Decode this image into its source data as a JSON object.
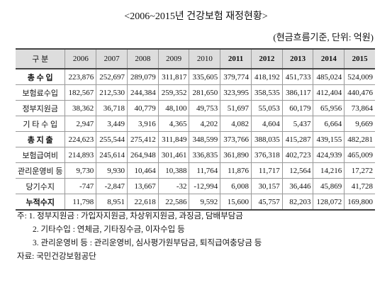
{
  "header": {
    "title": "<2006~2015년 건강보험 재정현황>",
    "unit": "(현금흐름기준, 단위: 억원)"
  },
  "table": {
    "columns": [
      "구 분",
      "2006",
      "2007",
      "2008",
      "2009",
      "2010",
      "2011",
      "2012",
      "2013",
      "2014",
      "2015"
    ],
    "rows": [
      [
        "총 수 입",
        "223,876",
        "252,697",
        "289,079",
        "311,817",
        "335,605",
        "379,774",
        "418,192",
        "451,733",
        "485,024",
        "524,009"
      ],
      [
        "보험료수입",
        "182,567",
        "212,530",
        "244,384",
        "259,352",
        "281,650",
        "323,995",
        "358,535",
        "386,117",
        "412,404",
        "440,476"
      ],
      [
        "정부지원금",
        "38,362",
        "36,718",
        "40,779",
        "48,100",
        "49,753",
        "51,697",
        "55,053",
        "60,179",
        "65,956",
        "73,864"
      ],
      [
        "기 타 수 입",
        "2,947",
        "3,449",
        "3,916",
        "4,365",
        "4,202",
        "4,082",
        "4,604",
        "5,437",
        "6,664",
        "9,669"
      ],
      [
        "총 지 출",
        "224,623",
        "255,544",
        "275,412",
        "311,849",
        "348,599",
        "373,766",
        "388,035",
        "415,287",
        "439,155",
        "482,281"
      ],
      [
        "보험급여비",
        "214,893",
        "245,614",
        "264,948",
        "301,461",
        "336,835",
        "361,890",
        "376,318",
        "402,723",
        "424,939",
        "465,009"
      ],
      [
        "관리운영비 등",
        "9,730",
        "9,930",
        "10,464",
        "10,388",
        "11,764",
        "11,876",
        "11,717",
        "12,564",
        "14,216",
        "17,272"
      ],
      [
        "당기수지",
        "-747",
        "-2,847",
        "13,667",
        "-32",
        "-12,994",
        "6,008",
        "30,157",
        "36,446",
        "45,869",
        "41,728"
      ],
      [
        "누적수지",
        "11,798",
        "8,951",
        "22,618",
        "22,586",
        "9,592",
        "15,600",
        "45,757",
        "82,203",
        "128,072",
        "169,800"
      ]
    ]
  },
  "notes": [
    "주: 1. 정부지원금 : 가입자지원금, 차상위지원금, 과징금, 담배부담금",
    "2. 기타수입 : 연체금, 기타징수금, 이자수입 등",
    "3. 관리운영비 등 : 관리운영비, 심사평가원부담금, 퇴직급여충당금 등"
  ],
  "source": "자료: 국민건강보험공단"
}
